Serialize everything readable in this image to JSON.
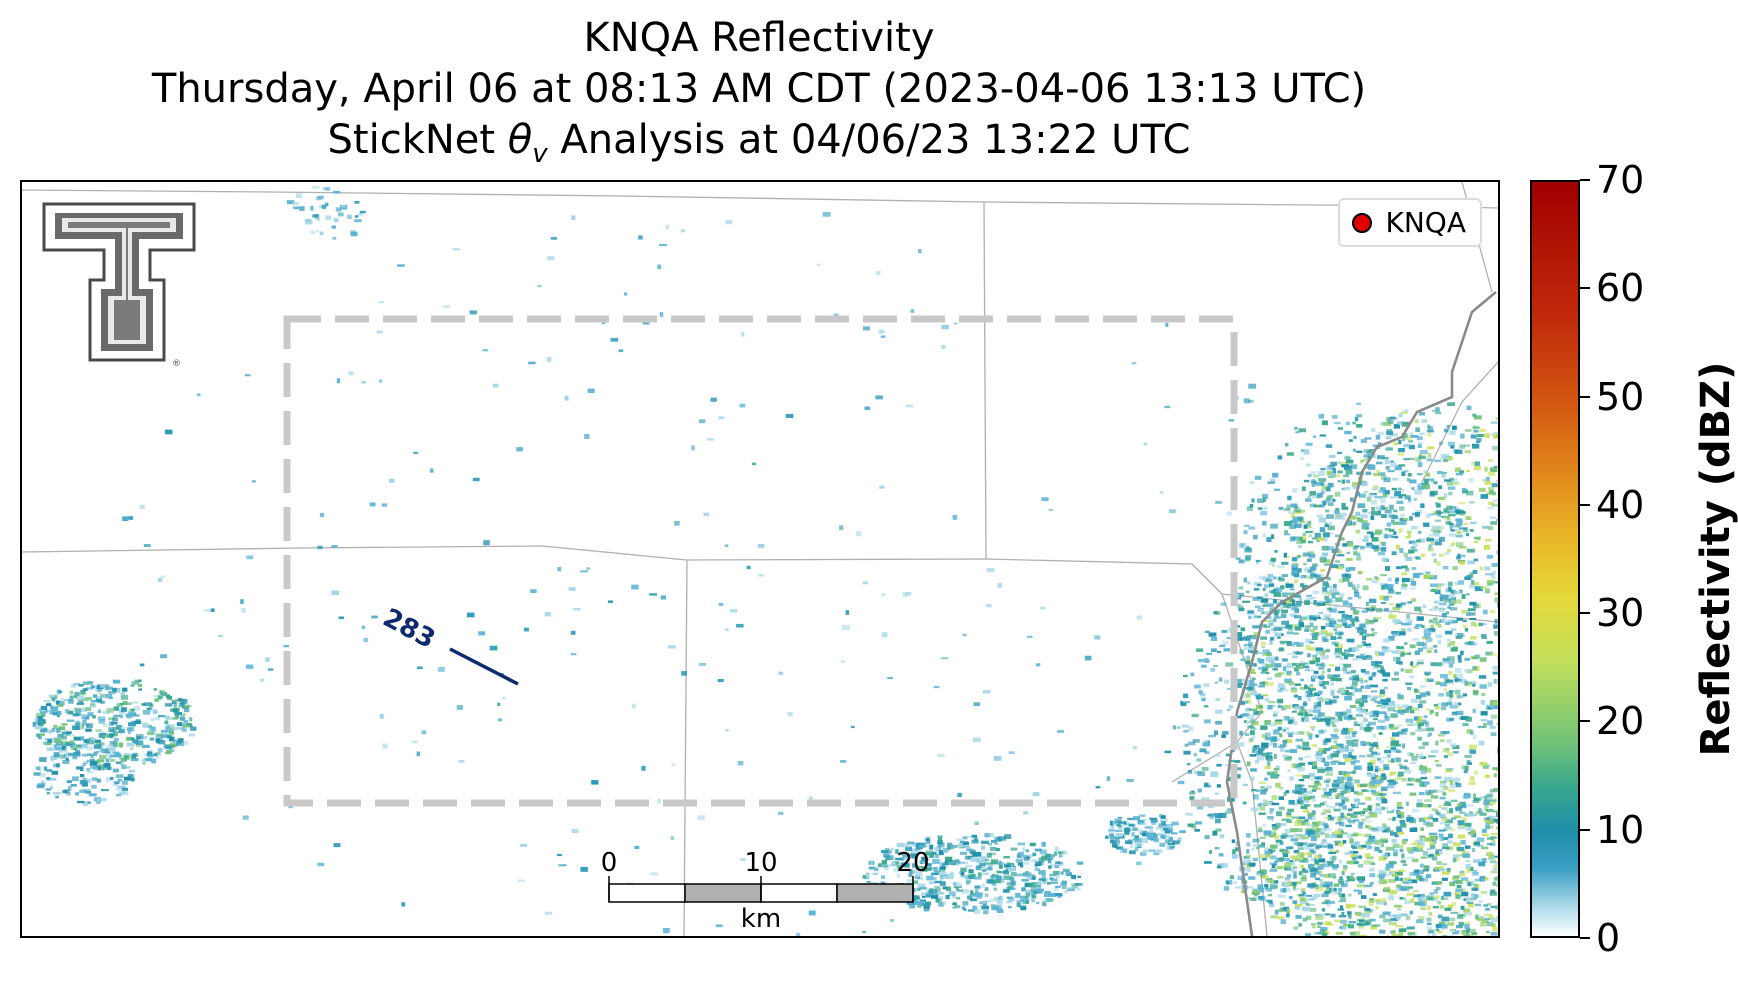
{
  "title": {
    "line1": "KNQA Reflectivity",
    "line2": "Thursday, April 06 at 08:13 AM CDT (2023-04-06 13:13 UTC)",
    "line3_prefix": "StickNet ",
    "line3_symbol": "θ",
    "line3_subscript": "v",
    "line3_suffix": " Analysis at 04/06/23 13:22 UTC"
  },
  "legend": {
    "label": "KNQA",
    "marker_color": "#e00000"
  },
  "contour": {
    "label": "283",
    "color": "#0d2a6e"
  },
  "scalebar": {
    "labels": [
      "0",
      "10",
      "20"
    ],
    "unit": "km"
  },
  "colorbar": {
    "title": "Reflectivity (dBZ)",
    "ticks": [
      "0",
      "10",
      "20",
      "30",
      "40",
      "50",
      "60",
      "70"
    ],
    "range": [
      0,
      70
    ]
  },
  "logo": {
    "name": "texas-tech-double-t-logo"
  },
  "colors": {
    "analysis_box": "#c8c8c8",
    "boundaries": "#8a8a8a",
    "county_lines": "#b0b0b0"
  }
}
